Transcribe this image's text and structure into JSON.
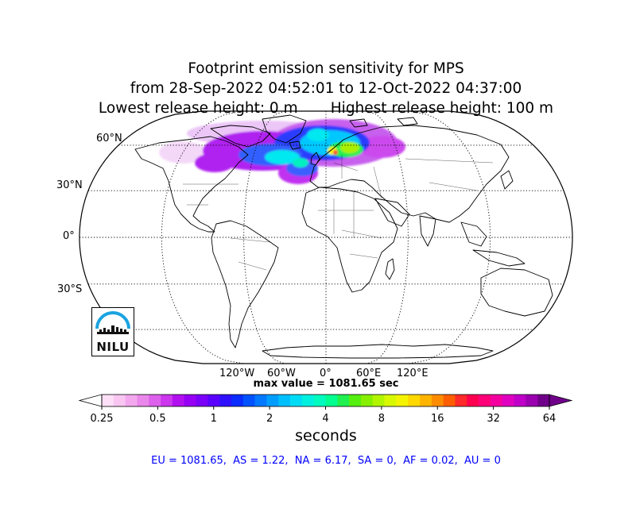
{
  "title": {
    "line1": "Footprint emission sensitivity for MPS",
    "line2": "from 28-Sep-2022 04:52:01 to 12-Oct-2022 04:37:00",
    "line3": "Lowest release height: 0 m       Highest release height: 100 m"
  },
  "map": {
    "projection": "robinson",
    "lat_labels": [
      "60°N",
      "30°N",
      "0°",
      "30°S"
    ],
    "lon_labels": [
      "120°W",
      "60°W",
      "0°",
      "60°E",
      "120°E"
    ],
    "max_value_text": "max value = 1081.65 sec",
    "coastline_color": "#000000",
    "ocean_color": "#ffffff"
  },
  "colorbar": {
    "ticks": [
      "0.25",
      "0.5",
      "1",
      "2",
      "4",
      "8",
      "16",
      "32",
      "64"
    ],
    "unit": "seconds",
    "colors": [
      "#ffffff",
      "#fde0f7",
      "#f9c6f2",
      "#f3a8ee",
      "#ea87ea",
      "#dd61ec",
      "#cb36ee",
      "#b310f0",
      "#9600f5",
      "#7a00fa",
      "#5a00ff",
      "#2e10ff",
      "#0a2cff",
      "#0052ff",
      "#0078ff",
      "#009dff",
      "#00bfff",
      "#00dcf5",
      "#00f0e0",
      "#00fbbf",
      "#00ff8f",
      "#20f050",
      "#55ef10",
      "#86f000",
      "#b2f500",
      "#d8f800",
      "#f5f400",
      "#ffd800",
      "#ffb400",
      "#ff8c00",
      "#ff5e00",
      "#ff2a2a",
      "#ff0050",
      "#ff0078",
      "#f500a0",
      "#e000c0",
      "#c000c8",
      "#9a00b0",
      "#70008a"
    ],
    "extend": "both"
  },
  "regions": {
    "text": "EU = 1081.65,  AS = 1.22,  NA = 6.17,  SA = 0,  AF = 0.02,  AU = 0",
    "color": "#0000ff"
  },
  "logo": {
    "text": "NILU"
  }
}
